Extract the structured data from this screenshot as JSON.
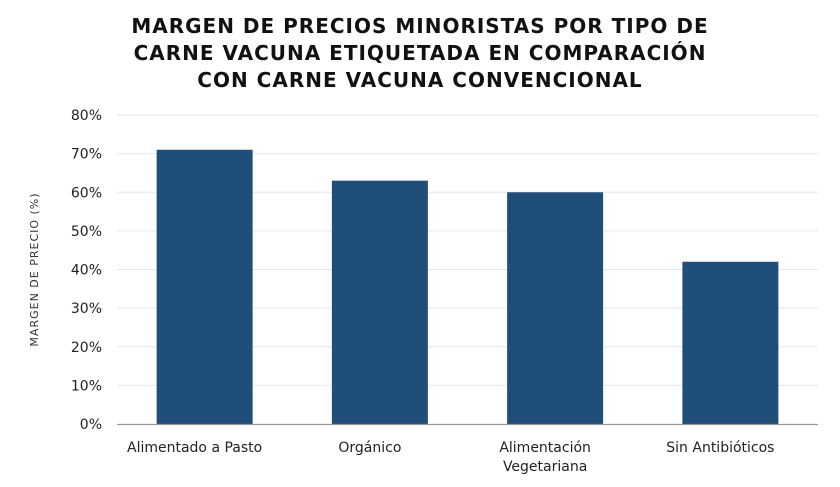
{
  "colors": {
    "bar": "#1f4e79",
    "grid": "#e6e6e6",
    "axis": "#9a9a9a",
    "text": "#222222"
  },
  "chart_data": {
    "type": "bar",
    "title_lines": [
      "MARGEN DE PRECIOS MINORISTAS POR TIPO DE",
      "CARNE VACUNA ETIQUETADA EN COMPARACIÓN",
      "CON CARNE VACUNA CONVENCIONAL"
    ],
    "ylabel": "MARGEN DE PRECIO (%)",
    "xlabel": "",
    "categories": [
      [
        "Alimentado a Pasto"
      ],
      [
        "Orgánico"
      ],
      [
        "Alimentación",
        "Vegetariana"
      ],
      [
        "Sin Antibióticos"
      ]
    ],
    "values": [
      71,
      63,
      60,
      42
    ],
    "ylim": [
      0,
      80
    ],
    "yticks": [
      0,
      10,
      20,
      30,
      40,
      50,
      60,
      70,
      80
    ],
    "ytick_labels": [
      "0%",
      "10%",
      "20%",
      "30%",
      "40%",
      "50%",
      "60%",
      "70%",
      "80%"
    ],
    "grid": true,
    "legend": "none"
  }
}
